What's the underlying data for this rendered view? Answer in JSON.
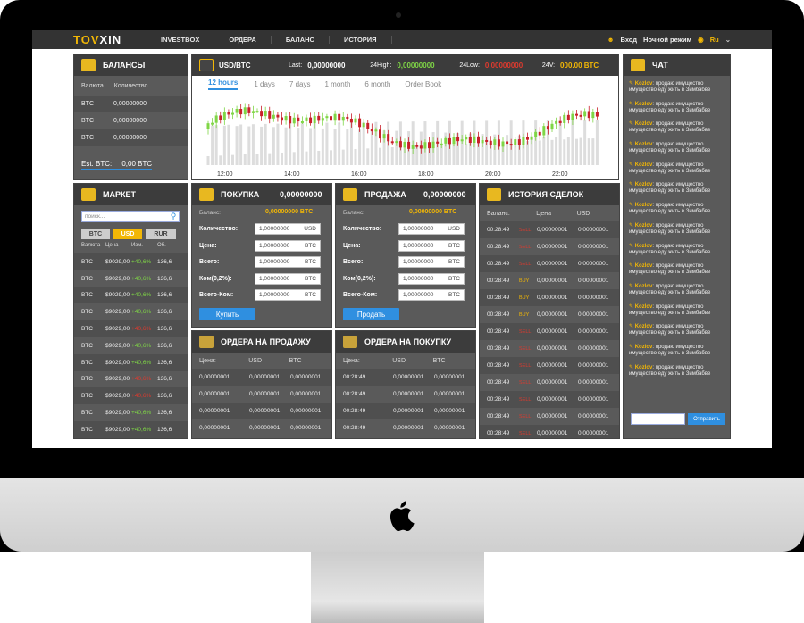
{
  "nav": {
    "logo_a": "TOV",
    "logo_b": "XIN",
    "links": [
      "INVESTBOX",
      "ОРДЕРА",
      "БАЛАНС",
      "ИСТОРИЯ"
    ],
    "login": "Вход",
    "night": "Ночной режим",
    "lang": "Ru"
  },
  "balances": {
    "title": "БАЛАНСЫ",
    "col1": "Валюта",
    "col2": "Количество",
    "rows": [
      [
        "BTC",
        "0,00000000"
      ],
      [
        "BTC",
        "0,00000000"
      ],
      [
        "BTC",
        "0,00000000"
      ]
    ],
    "est_label": "Est. BTC:",
    "est_value": "0,00 BTC"
  },
  "chart_header": {
    "pair": "USD/BTC",
    "last_label": "Last:",
    "last": "0,00000000",
    "high_label": "24High:",
    "high": "0,00000000",
    "low_label": "24Low:",
    "low": "0,00000000",
    "v_label": "24V:",
    "v": "000.00 BTC",
    "tabs": [
      "12 hours",
      "1 days",
      "7 days",
      "1 month",
      "6 month",
      "Order Book"
    ]
  },
  "chart_data": {
    "type": "candlestick",
    "x_ticks": [
      "12:00",
      "14:00",
      "16:00",
      "18:00",
      "20:00",
      "22:00"
    ]
  },
  "market": {
    "title": "МАРКЕТ",
    "search_placeholder": "поиск...",
    "tabs": [
      "BTC",
      "USD",
      "RUR"
    ],
    "cols": [
      "Валюта",
      "Цена",
      "Изм.",
      "Об."
    ],
    "rows": [
      [
        "BTC",
        "$9029,00",
        "+40,6%",
        "136,6",
        "up"
      ],
      [
        "BTC",
        "$9029,00",
        "+40,6%",
        "136,6",
        "up"
      ],
      [
        "BTC",
        "$9029,00",
        "+40,6%",
        "136,6",
        "up"
      ],
      [
        "BTC",
        "$9029,00",
        "+40,6%",
        "136,6",
        "up"
      ],
      [
        "BTC",
        "$9029,00",
        "+40,6%",
        "136,6",
        "down"
      ],
      [
        "BTC",
        "$9029,00",
        "+40,6%",
        "136,6",
        "up"
      ],
      [
        "BTC",
        "$9029,00",
        "+40,6%",
        "136,6",
        "up"
      ],
      [
        "BTC",
        "$9029,00",
        "+40,6%",
        "136,6",
        "down"
      ],
      [
        "BTC",
        "$9029,00",
        "+40,6%",
        "136,6",
        "down"
      ],
      [
        "BTC",
        "$9029,00",
        "+40,6%",
        "136,6",
        "up"
      ],
      [
        "BTC",
        "$9029,00",
        "+40,6%",
        "136,6",
        "up"
      ]
    ]
  },
  "buy": {
    "title": "ПОКУПКА",
    "amount": "0,00000000",
    "balance_label": "Баланс:",
    "balance": "0,00000000 BTC",
    "fields": [
      [
        "Количество:",
        "1,00000000",
        "USD"
      ],
      [
        "Цена:",
        "1,00000000",
        "BTC"
      ],
      [
        "Всего:",
        "1,00000000",
        "BTC"
      ],
      [
        "Ком(0,2%):",
        "1,00000000",
        "BTC"
      ],
      [
        "Всего-Ком:",
        "1,00000000",
        "BTC"
      ]
    ],
    "button": "Купить"
  },
  "sell": {
    "title": "ПРОДАЖА",
    "amount": "0,00000000",
    "balance_label": "Баланс:",
    "balance": "0,00000000 BTC",
    "fields": [
      [
        "Количество:",
        "1,00000000",
        "USD"
      ],
      [
        "Цена:",
        "1,00000000",
        "BTC"
      ],
      [
        "Всего:",
        "1,00000000",
        "BTC"
      ],
      [
        "Ком(0,2%):",
        "1,00000000",
        "BTC"
      ],
      [
        "Всего-Ком:",
        "1,00000000",
        "BTC"
      ]
    ],
    "button": "Продать"
  },
  "history": {
    "title": "ИСТОРИЯ СДЕЛОК",
    "cols": [
      "Баланс:",
      "Цена",
      "USD"
    ],
    "rows": [
      [
        "00:28:49",
        "SELL",
        "0,00000001",
        "0,00000001"
      ],
      [
        "00:28:49",
        "SELL",
        "0,00000001",
        "0,00000001"
      ],
      [
        "00:28:49",
        "SELL",
        "0,00000001",
        "0,00000001"
      ],
      [
        "00:28:49",
        "BUY",
        "0,00000001",
        "0,00000001"
      ],
      [
        "00:28:49",
        "BUY",
        "0,00000001",
        "0,00000001"
      ],
      [
        "00:28:49",
        "BUY",
        "0,00000001",
        "0,00000001"
      ],
      [
        "00:28:49",
        "SELL",
        "0,00000001",
        "0,00000001"
      ],
      [
        "00:28:49",
        "SELL",
        "0,00000001",
        "0,00000001"
      ],
      [
        "00:28:49",
        "SELL",
        "0,00000001",
        "0,00000001"
      ],
      [
        "00:28:49",
        "SELL",
        "0,00000001",
        "0,00000001"
      ],
      [
        "00:28:49",
        "SELL",
        "0,00000001",
        "0,00000001"
      ],
      [
        "00:28:49",
        "SELL",
        "0,00000001",
        "0,00000001"
      ],
      [
        "00:28:49",
        "SELL",
        "0,00000001",
        "0,00000001"
      ]
    ]
  },
  "orders_sell": {
    "title": "ОРДЕРА НА ПРОДАЖУ",
    "cols": [
      "Цена:",
      "USD",
      "BTC"
    ],
    "rows": [
      [
        "0,00000001",
        "0,00000001",
        "0,00000001"
      ],
      [
        "0,00000001",
        "0,00000001",
        "0,00000001"
      ],
      [
        "0,00000001",
        "0,00000001",
        "0,00000001"
      ],
      [
        "0,00000001",
        "0,00000001",
        "0,00000001"
      ]
    ]
  },
  "orders_buy": {
    "title": "ОРДЕРА НА ПОКУПКУ",
    "cols": [
      "Цена:",
      "USD",
      "BTC"
    ],
    "rows": [
      [
        "00:28:49",
        "0,00000001",
        "0,00000001"
      ],
      [
        "00:28:49",
        "0,00000001",
        "0,00000001"
      ],
      [
        "00:28:49",
        "0,00000001",
        "0,00000001"
      ],
      [
        "00:28:49",
        "0,00000001",
        "0,00000001"
      ]
    ]
  },
  "chat": {
    "title": "ЧАТ",
    "user": "Kozlov",
    "text": ": продаю имущество имущество еду жить в Зимбабве",
    "count": 15,
    "send": "Отправить"
  },
  "colors": {
    "accent": "#f2b705",
    "up": "#7fd646",
    "down": "#e03a2e",
    "button": "#2f8fe0"
  }
}
